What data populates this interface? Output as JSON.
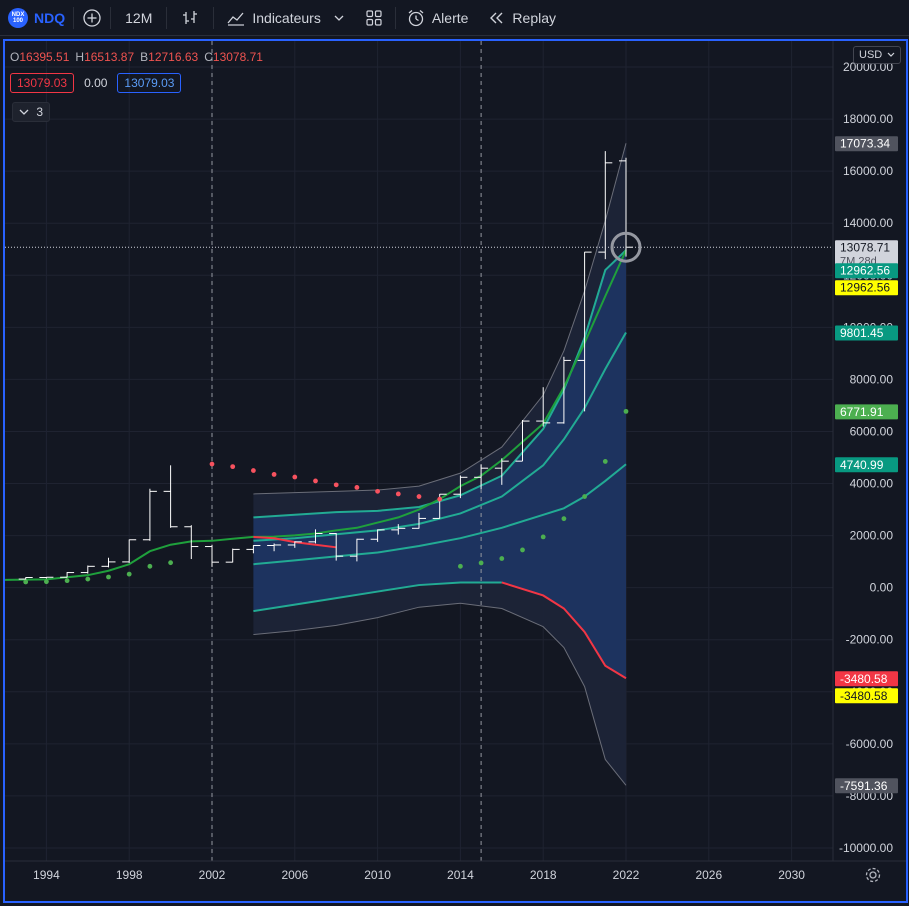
{
  "toolbar": {
    "logo_text": "NDX 100",
    "symbol": "NDQ",
    "interval": "12M",
    "indicators_label": "Indicateurs",
    "alert_label": "Alerte",
    "replay_label": "Replay"
  },
  "legend": {
    "open_key": "O",
    "open": "16395.51",
    "high_key": "H",
    "high": "16513.87",
    "low_key": "B",
    "low": "12716.63",
    "close_key": "C",
    "close": "13078.71",
    "value_left": "13079.03",
    "value_mid": "0.00",
    "value_right": "13079.03",
    "collapse_count": "3"
  },
  "currency": "USD",
  "colors": {
    "background": "#131722",
    "accent": "#2962ff",
    "green": "#089981",
    "green_line": "#22ab94",
    "red": "#f23645",
    "band_fill": "#1e3a6e",
    "bar": "#ffffff"
  },
  "chart_data": {
    "type": "ohlc",
    "x_axis_ticks": [
      "1994",
      "1998",
      "2002",
      "2006",
      "2010",
      "2014",
      "2018",
      "2022",
      "2026",
      "2030"
    ],
    "y_axis_ticks": [
      "20000.00",
      "18000.00",
      "16000.00",
      "14000.00",
      "12000.00",
      "10000.00",
      "8000.00",
      "6000.00",
      "4000.00",
      "2000.00",
      "0.00",
      "-2000.00",
      "-4000.00",
      "-6000.00",
      "-8000.00",
      "-10000.00"
    ],
    "xlim": [
      1992,
      2032
    ],
    "ylim": [
      -10500,
      21000
    ],
    "ohlc": [
      {
        "x": 1993,
        "o": 330,
        "h": 400,
        "l": 300,
        "c": 390
      },
      {
        "x": 1994,
        "o": 390,
        "h": 410,
        "l": 350,
        "c": 400
      },
      {
        "x": 1995,
        "o": 400,
        "h": 600,
        "l": 390,
        "c": 580
      },
      {
        "x": 1996,
        "o": 580,
        "h": 850,
        "l": 540,
        "c": 820
      },
      {
        "x": 1997,
        "o": 820,
        "h": 1150,
        "l": 780,
        "c": 990
      },
      {
        "x": 1998,
        "o": 990,
        "h": 1850,
        "l": 950,
        "c": 1840
      },
      {
        "x": 1999,
        "o": 1840,
        "h": 3800,
        "l": 1800,
        "c": 3700
      },
      {
        "x": 2000,
        "o": 3700,
        "h": 4700,
        "l": 2300,
        "c": 2340
      },
      {
        "x": 2001,
        "o": 2340,
        "h": 2400,
        "l": 1100,
        "c": 1580
      },
      {
        "x": 2002,
        "o": 1580,
        "h": 1650,
        "l": 800,
        "c": 980
      },
      {
        "x": 2003,
        "o": 980,
        "h": 1500,
        "l": 970,
        "c": 1470
      },
      {
        "x": 2004,
        "o": 1470,
        "h": 1630,
        "l": 1320,
        "c": 1620
      },
      {
        "x": 2005,
        "o": 1620,
        "h": 1700,
        "l": 1400,
        "c": 1640
      },
      {
        "x": 2006,
        "o": 1640,
        "h": 1780,
        "l": 1530,
        "c": 1760
      },
      {
        "x": 2007,
        "o": 1760,
        "h": 2240,
        "l": 1700,
        "c": 2080
      },
      {
        "x": 2008,
        "o": 2080,
        "h": 2100,
        "l": 1040,
        "c": 1210
      },
      {
        "x": 2009,
        "o": 1210,
        "h": 1880,
        "l": 1010,
        "c": 1860
      },
      {
        "x": 2010,
        "o": 1860,
        "h": 2240,
        "l": 1760,
        "c": 2220
      },
      {
        "x": 2011,
        "o": 2220,
        "h": 2440,
        "l": 2040,
        "c": 2280
      },
      {
        "x": 2012,
        "o": 2280,
        "h": 2870,
        "l": 2270,
        "c": 2660
      },
      {
        "x": 2013,
        "o": 2660,
        "h": 3600,
        "l": 2660,
        "c": 3590
      },
      {
        "x": 2014,
        "o": 3590,
        "h": 4310,
        "l": 3440,
        "c": 4240
      },
      {
        "x": 2015,
        "o": 4240,
        "h": 4740,
        "l": 3790,
        "c": 4590
      },
      {
        "x": 2016,
        "o": 4590,
        "h": 4970,
        "l": 3950,
        "c": 4860
      },
      {
        "x": 2017,
        "o": 4860,
        "h": 6440,
        "l": 4860,
        "c": 6400
      },
      {
        "x": 2018,
        "o": 6400,
        "h": 7700,
        "l": 6190,
        "c": 6330
      },
      {
        "x": 2019,
        "o": 6330,
        "h": 8870,
        "l": 6300,
        "c": 8730
      },
      {
        "x": 2020,
        "o": 8730,
        "h": 12900,
        "l": 6770,
        "c": 12890
      },
      {
        "x": 2021,
        "o": 12890,
        "h": 16770,
        "l": 12620,
        "c": 16320
      },
      {
        "x": 2022,
        "o": 16395.51,
        "h": 16513.87,
        "l": 12716.63,
        "c": 13078.71
      }
    ],
    "ma_line": {
      "x": [
        1992,
        1994,
        1996,
        1997,
        1998,
        1999,
        2000,
        2001,
        2002,
        2003,
        2004,
        2005,
        2006,
        2007,
        2008,
        2009,
        2010,
        2011,
        2012,
        2013,
        2014,
        2015,
        2016,
        2017,
        2018,
        2019,
        2020,
        2021,
        2022
      ],
      "y": [
        300,
        320,
        480,
        650,
        900,
        1400,
        1650,
        1780,
        1800,
        1880,
        1950,
        1960,
        2010,
        2080,
        2200,
        2300,
        2500,
        2700,
        3000,
        3400,
        3900,
        4300,
        4900,
        5600,
        6300,
        7700,
        9400,
        11200,
        12962.56
      ]
    },
    "band": {
      "x": [
        2004,
        2006,
        2008,
        2010,
        2012,
        2014,
        2016,
        2018,
        2019,
        2020,
        2021,
        2022
      ],
      "outer_upper": [
        3600,
        3650,
        3700,
        3750,
        3900,
        4400,
        5400,
        7400,
        9100,
        11400,
        14100,
        17073.34
      ],
      "upper": [
        2700,
        2800,
        2900,
        2950,
        3100,
        3550,
        4300,
        6100,
        7600,
        9600,
        12200,
        12962.56
      ],
      "mid_upper": [
        1800,
        1900,
        2050,
        2200,
        2450,
        2850,
        3500,
        4700,
        5700,
        6900,
        8400,
        9801.45
      ],
      "mid": [
        900,
        1050,
        1200,
        1350,
        1600,
        1900,
        2300,
        2800,
        3050,
        3500,
        4100,
        4740.99
      ],
      "lower": [
        -900,
        -650,
        -400,
        -150,
        100,
        200,
        200,
        -300,
        -800,
        -1700,
        -3000,
        -3480.58
      ],
      "outer_lower": [
        -1800,
        -1650,
        -1450,
        -1150,
        -750,
        -600,
        -800,
        -1500,
        -2300,
        -3800,
        -6600,
        -7591.36
      ],
      "lower_red_from": 2016
    },
    "red_segment": {
      "x": [
        2004,
        2005,
        2006,
        2007,
        2008
      ],
      "y": [
        1950,
        1900,
        1750,
        1650,
        1550
      ]
    },
    "dots_red": {
      "x": [
        2002,
        2003,
        2004,
        2005,
        2006,
        2007,
        2008,
        2009,
        2010,
        2011,
        2012,
        2013
      ],
      "y": [
        4750,
        4650,
        4500,
        4350,
        4250,
        4100,
        3950,
        3850,
        3700,
        3600,
        3500,
        3400
      ]
    },
    "dots_green": {
      "x": [
        1993,
        1994,
        1995,
        1996,
        1997,
        1998,
        1999,
        2000,
        2014,
        2015,
        2016,
        2017,
        2018,
        2019,
        2020,
        2021,
        2022
      ],
      "y": [
        220,
        230,
        270,
        330,
        410,
        520,
        820,
        960,
        820,
        950,
        1120,
        1450,
        1950,
        2650,
        3500,
        4850,
        6771.91
      ]
    },
    "price_labels": [
      {
        "text": "17073.34",
        "value": 17073.34,
        "bg": "#50535e",
        "fg": "#ffffff"
      },
      {
        "text": "13078.71",
        "value": 13078.71,
        "bg": "#d1d4dc",
        "fg": "#131722",
        "sub": "7M 28d"
      },
      {
        "text": "12962.56",
        "value": 12962.56,
        "bg": "#089981",
        "fg": "#ffffff",
        "offset": 20
      },
      {
        "text": "12962.56",
        "value": 12962.56,
        "bg": "#ffff00",
        "fg": "#131722",
        "offset": 37
      },
      {
        "text": "9801.45",
        "value": 9801.45,
        "bg": "#089981",
        "fg": "#ffffff"
      },
      {
        "text": "6771.91",
        "value": 6771.91,
        "bg": "#4caf50",
        "fg": "#ffffff"
      },
      {
        "text": "4740.99",
        "value": 4740.99,
        "bg": "#089981",
        "fg": "#ffffff"
      },
      {
        "text": "-3480.58",
        "value": -3480.58,
        "bg": "#f23645",
        "fg": "#ffffff"
      },
      {
        "text": "-3480.58",
        "value": -3480.58,
        "bg": "#ffff00",
        "fg": "#131722",
        "offset": 17
      },
      {
        "text": "-7591.36",
        "value": -7591.36,
        "bg": "#50535e",
        "fg": "#ffffff"
      }
    ],
    "vertical_markers": [
      2002,
      2015
    ],
    "grid": true
  }
}
